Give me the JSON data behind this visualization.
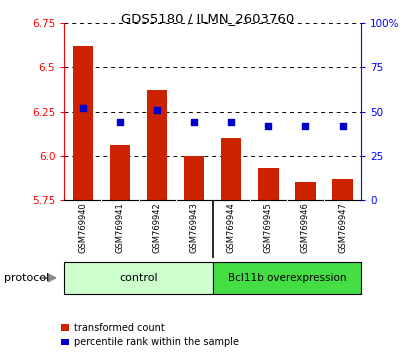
{
  "title": "GDS5180 / ILMN_2603760",
  "samples": [
    "GSM769940",
    "GSM769941",
    "GSM769942",
    "GSM769943",
    "GSM769944",
    "GSM769945",
    "GSM769946",
    "GSM769947"
  ],
  "transformed_counts": [
    6.62,
    6.06,
    6.37,
    6.0,
    6.1,
    5.93,
    5.85,
    5.87
  ],
  "percentile_ranks": [
    52,
    44,
    51,
    44,
    44,
    42,
    42,
    42
  ],
  "ylim_left": [
    5.75,
    6.75
  ],
  "ylim_right": [
    0,
    100
  ],
  "yticks_left": [
    5.75,
    6.0,
    6.25,
    6.5,
    6.75
  ],
  "yticks_right": [
    0,
    25,
    50,
    75,
    100
  ],
  "ytick_labels_right": [
    "0",
    "25",
    "50",
    "75",
    "100%"
  ],
  "bar_color": "#cc2200",
  "dot_color": "#0000cc",
  "bar_bottom": 5.75,
  "control_label": "control",
  "overexpression_label": "Bcl11b overexpression",
  "control_bg": "#ccffcc",
  "overexpression_bg": "#44dd44",
  "protocol_label": "protocol",
  "legend1": "transformed count",
  "legend2": "percentile rank within the sample",
  "axis_bg": "#d0d0d0",
  "plot_bg": "#ffffff"
}
